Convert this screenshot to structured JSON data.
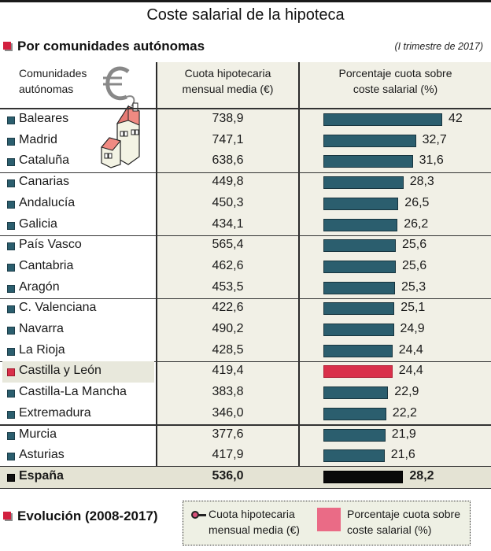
{
  "title": "Coste salarial de la hipoteca",
  "section1": {
    "title": "Por comunidades autónomas",
    "period": "(I trimestre de 2017)"
  },
  "section2": {
    "title": "Evolución (2008-2017)"
  },
  "colors": {
    "bar": "#2b5e6e",
    "highlight": "#d9304a",
    "total": "#0a0a0a",
    "accent": "#d2203f",
    "panel": "#f1f0e6"
  },
  "icons": [
    "euro-house-illustration",
    "square-bullet-icon"
  ],
  "chart_data": {
    "type": "table",
    "title": "Coste salarial de la hipoteca",
    "subtitle": "Por comunidades autónomas",
    "period": "(I trimestre de 2017)",
    "columns": [
      "Comunidades autónomas",
      "Cuota hipotecaria mensual media (€)",
      "Porcentaje cuota sobre coste salarial (%)"
    ],
    "header": {
      "col1_line1": "Comunidades",
      "col1_line2": "autónomas",
      "col2_line1": "Cuota hipotecaria",
      "col2_line2": "mensual media (€)",
      "col3_line1": "Porcentaje cuota sobre",
      "col3_line2": "coste salarial (%)"
    },
    "bar_scale_max": 42,
    "rows": [
      {
        "name": "Baleares",
        "cuota": "738,9",
        "pct": 42,
        "pct_label": "42",
        "group": 1
      },
      {
        "name": "Madrid",
        "cuota": "747,1",
        "pct": 32.7,
        "pct_label": "32,7",
        "group": 1
      },
      {
        "name": "Cataluña",
        "cuota": "638,6",
        "pct": 31.6,
        "pct_label": "31,6",
        "group": 1
      },
      {
        "name": "Canarias",
        "cuota": "449,8",
        "pct": 28.3,
        "pct_label": "28,3",
        "group": 2
      },
      {
        "name": "Andalucía",
        "cuota": "450,3",
        "pct": 26.5,
        "pct_label": "26,5",
        "group": 2
      },
      {
        "name": "Galicia",
        "cuota": "434,1",
        "pct": 26.2,
        "pct_label": "26,2",
        "group": 2
      },
      {
        "name": "País Vasco",
        "cuota": "565,4",
        "pct": 25.6,
        "pct_label": "25,6",
        "group": 3
      },
      {
        "name": "Cantabria",
        "cuota": "462,6",
        "pct": 25.6,
        "pct_label": "25,6",
        "group": 3
      },
      {
        "name": "Aragón",
        "cuota": "453,5",
        "pct": 25.3,
        "pct_label": "25,3",
        "group": 3
      },
      {
        "name": "C. Valenciana",
        "cuota": "422,6",
        "pct": 25.1,
        "pct_label": "25,1",
        "group": 4
      },
      {
        "name": "Navarra",
        "cuota": "490,2",
        "pct": 24.9,
        "pct_label": "24,9",
        "group": 4
      },
      {
        "name": "La Rioja",
        "cuota": "428,5",
        "pct": 24.4,
        "pct_label": "24,4",
        "group": 4
      },
      {
        "name": "Castilla y León",
        "cuota": "419,4",
        "pct": 24.4,
        "pct_label": "24,4",
        "group": 5,
        "highlight": true
      },
      {
        "name": "Castilla-La Mancha",
        "cuota": "383,8",
        "pct": 22.9,
        "pct_label": "22,9",
        "group": 5
      },
      {
        "name": "Extremadura",
        "cuota": "346,0",
        "pct": 22.2,
        "pct_label": "22,2",
        "group": 5
      },
      {
        "name": "Murcia",
        "cuota": "377,6",
        "pct": 21.9,
        "pct_label": "21,9",
        "group": 6
      },
      {
        "name": "Asturias",
        "cuota": "417,9",
        "pct": 21.6,
        "pct_label": "21,6",
        "group": 6
      },
      {
        "name": "España",
        "cuota": "536,0",
        "pct": 28.2,
        "pct_label": "28,2",
        "group": 7,
        "total": true
      }
    ]
  },
  "legend": {
    "line_label_1": "Cuota hipotecaria",
    "line_label_2": "mensual media (€)",
    "area_label_1": "Porcentaje cuota sobre",
    "area_label_2": "coste salarial (%)"
  }
}
